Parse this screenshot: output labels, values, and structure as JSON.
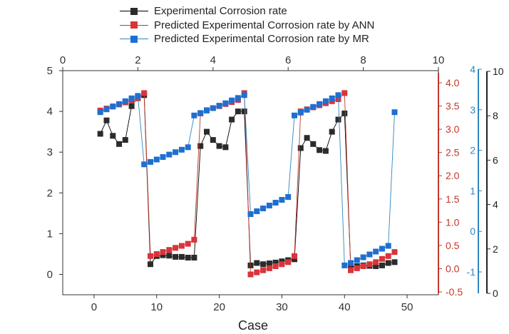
{
  "chart_data": {
    "type": "line",
    "title": "",
    "xlabel": "Case",
    "x_bottom": {
      "lim": [
        -5,
        55
      ],
      "ticks": [
        0,
        10,
        20,
        30,
        40,
        50
      ]
    },
    "x_top": {
      "lim": [
        0,
        10
      ],
      "ticks": [
        0,
        2,
        4,
        6,
        8,
        10
      ]
    },
    "y_left": {
      "lim": [
        -0.5,
        5
      ],
      "ticks": [
        0,
        1,
        2,
        3,
        4,
        5
      ],
      "color": "#000000"
    },
    "y_red": {
      "lim": [
        -0.5,
        4.2
      ],
      "ticks": [
        -0.5,
        0.0,
        0.5,
        1.0,
        1.5,
        2.0,
        2.5,
        3.0,
        3.5,
        4.0
      ],
      "tick_labels": [
        "-0.5",
        "0.0",
        "0.5",
        "1.0",
        "1.5",
        "2.0",
        "2.5",
        "3.0",
        "3.5",
        "4.0"
      ],
      "color": "#c0392b"
    },
    "y_blue": {
      "lim": [
        -1.5,
        4
      ],
      "ticks": [
        -1,
        0,
        1,
        2,
        3,
        4
      ],
      "color": "#2e86c1"
    },
    "y_outer": {
      "lim": [
        0,
        10
      ],
      "ticks": [
        0,
        2,
        4,
        6,
        8,
        10
      ],
      "color": "#000000"
    },
    "legend_placement": "top",
    "grid": false,
    "series": [
      {
        "name": "Experimental Corrosion rate",
        "color": "#000000",
        "marker_color": "#2b2b2b",
        "axis": "y_left",
        "x": [
          1,
          2,
          3,
          4,
          5,
          6,
          7,
          8,
          9,
          10,
          11,
          12,
          13,
          14,
          15,
          16,
          17,
          18,
          19,
          20,
          21,
          22,
          23,
          24,
          25,
          26,
          27,
          28,
          29,
          30,
          31,
          32,
          33,
          34,
          35,
          36,
          37,
          38,
          39,
          40,
          41,
          42,
          43,
          44,
          45,
          46,
          47,
          48
        ],
        "values": [
          3.45,
          3.78,
          3.4,
          3.2,
          3.3,
          4.13,
          4.35,
          4.4,
          0.25,
          0.45,
          0.47,
          0.46,
          0.43,
          0.43,
          0.41,
          0.41,
          3.15,
          3.5,
          3.3,
          3.15,
          3.12,
          3.8,
          4.0,
          4.0,
          0.22,
          0.28,
          0.25,
          0.27,
          0.29,
          0.32,
          0.35,
          0.37,
          3.1,
          3.35,
          3.2,
          3.05,
          3.03,
          3.5,
          3.8,
          3.95,
          0.18,
          0.2,
          0.22,
          0.21,
          0.2,
          0.22,
          0.28,
          0.3
        ]
      },
      {
        "name": "Predicted Experimental Corrosion rate by ANN",
        "color": "#c0392b",
        "marker_color": "#d9343a",
        "axis": "y_left",
        "x": [
          1,
          2,
          3,
          4,
          5,
          6,
          7,
          8,
          9,
          10,
          11,
          12,
          13,
          14,
          15,
          16,
          17,
          18,
          19,
          20,
          21,
          22,
          23,
          24,
          25,
          26,
          27,
          28,
          29,
          30,
          31,
          32,
          33,
          34,
          35,
          36,
          37,
          38,
          39,
          40,
          41,
          42,
          43,
          44,
          45,
          46,
          47,
          48
        ],
        "values": [
          4.02,
          4.07,
          4.12,
          4.17,
          4.22,
          4.27,
          4.32,
          4.45,
          0.45,
          0.5,
          0.55,
          0.6,
          0.65,
          0.7,
          0.75,
          0.85,
          3.95,
          4.03,
          4.08,
          4.13,
          4.18,
          4.23,
          4.28,
          4.45,
          0.0,
          0.05,
          0.1,
          0.15,
          0.2,
          0.25,
          0.3,
          0.45,
          4.0,
          4.05,
          4.1,
          4.15,
          4.2,
          4.25,
          4.3,
          4.45,
          0.1,
          0.15,
          0.2,
          0.25,
          0.3,
          0.38,
          0.45,
          0.55
        ]
      },
      {
        "name": "Predicted Experimental Corrosion rate by MR",
        "color": "#2e86c1",
        "marker_color": "#1f6fd1",
        "axis": "y_left",
        "x": [
          1,
          2,
          3,
          4,
          5,
          6,
          7,
          8,
          9,
          10,
          11,
          12,
          13,
          14,
          15,
          16,
          17,
          18,
          19,
          20,
          21,
          22,
          23,
          24,
          25,
          26,
          27,
          28,
          29,
          30,
          31,
          32,
          33,
          34,
          35,
          36,
          37,
          38,
          39,
          40,
          41,
          42,
          43,
          44,
          45,
          46,
          47,
          48
        ],
        "values": [
          3.98,
          4.05,
          4.12,
          4.18,
          4.25,
          4.32,
          4.38,
          2.7,
          2.76,
          2.82,
          2.88,
          2.94,
          3.0,
          3.06,
          3.12,
          3.9,
          3.96,
          4.02,
          4.08,
          4.14,
          4.2,
          4.27,
          4.33,
          4.4,
          1.48,
          1.55,
          1.62,
          1.69,
          1.76,
          1.83,
          1.9,
          3.9,
          3.97,
          4.04,
          4.11,
          4.18,
          4.25,
          4.32,
          4.4,
          0.22,
          0.28,
          0.35,
          0.42,
          0.49,
          0.56,
          0.63,
          0.7,
          3.98
        ]
      }
    ]
  }
}
